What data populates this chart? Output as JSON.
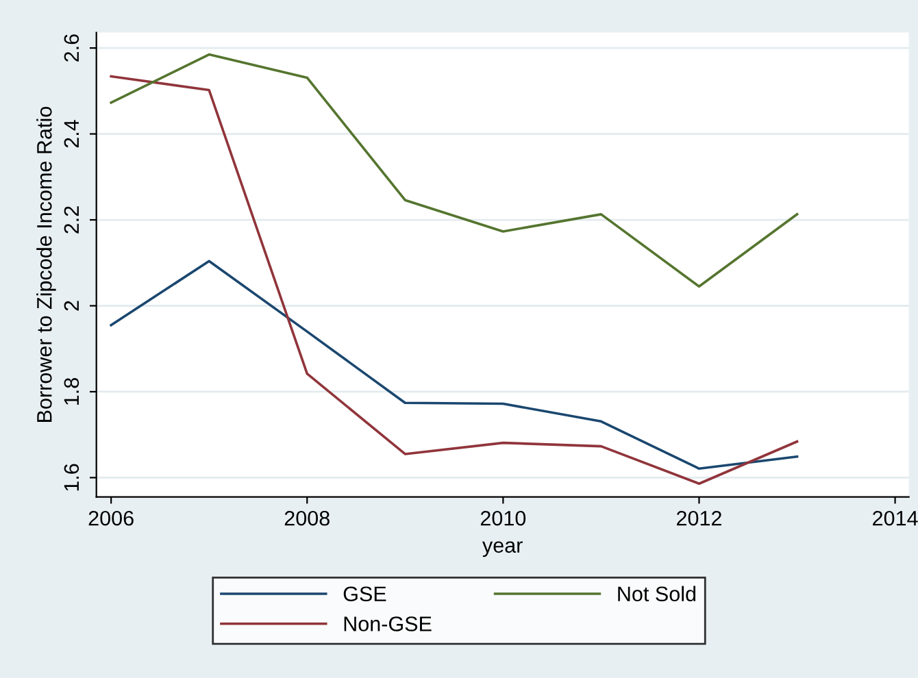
{
  "chart_data": {
    "type": "line",
    "xlabel": "year",
    "ylabel": "Borrower to Zipcode Income Ratio",
    "x": [
      2006,
      2007,
      2008,
      2009,
      2010,
      2011,
      2012,
      2013
    ],
    "series": [
      {
        "name": "GSE",
        "color": "#1a476f",
        "values": [
          1.955,
          2.104,
          1.94,
          1.774,
          1.772,
          1.731,
          1.621,
          1.649
        ]
      },
      {
        "name": "Non-GSE",
        "color": "#90353b",
        "values": [
          2.534,
          2.502,
          1.842,
          1.655,
          1.681,
          1.673,
          1.586,
          1.684
        ]
      },
      {
        "name": "Not Sold",
        "color": "#55752f",
        "values": [
          2.473,
          2.585,
          2.531,
          2.246,
          2.173,
          2.213,
          2.045,
          2.213
        ]
      }
    ],
    "xlim": [
      2005.85,
      2014.14
    ],
    "ylim": [
      1.555,
      2.636
    ],
    "xticks": [
      2006,
      2008,
      2010,
      2012,
      2014
    ],
    "yticks": [
      1.6,
      1.8,
      2,
      2.2,
      2.4,
      2.6
    ],
    "grid": "y",
    "legend": "bottom",
    "marker": "none",
    "line_style": "solid"
  }
}
